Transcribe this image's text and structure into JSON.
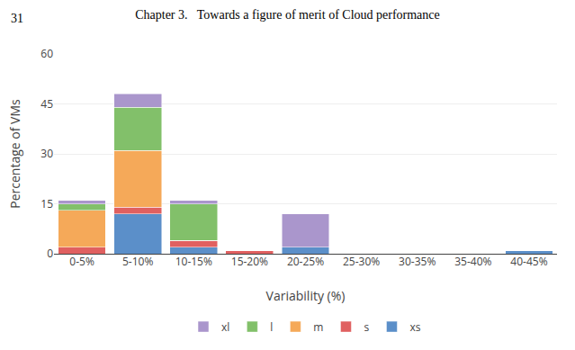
{
  "chart_data": {
    "type": "bar",
    "stacked": true,
    "title": "Chapter 3.   Towards a figure of merit of Cloud performance",
    "annotations": [
      "31"
    ],
    "xlabel": "Variability (%)",
    "ylabel": "Percentage of VMs",
    "categories": [
      "0-5%",
      "5-10%",
      "10-15%",
      "15-20%",
      "20-25%",
      "25-30%",
      "30-35%",
      "35-40%",
      "40-45%"
    ],
    "series": [
      {
        "name": "xs",
        "color": "#5b8fc9",
        "values": [
          0,
          12,
          2,
          0,
          2,
          0,
          0,
          0,
          1
        ]
      },
      {
        "name": "s",
        "color": "#e06060",
        "values": [
          2,
          2,
          2,
          1,
          0,
          0,
          0,
          0,
          0
        ]
      },
      {
        "name": "m",
        "color": "#f5a959",
        "values": [
          11,
          17,
          0,
          0,
          0,
          0,
          0,
          0,
          0
        ]
      },
      {
        "name": "l",
        "color": "#82c06a",
        "values": [
          2,
          13,
          11,
          0,
          0,
          0,
          0,
          0,
          0
        ]
      },
      {
        "name": "xl",
        "color": "#aa96cc",
        "values": [
          1,
          4,
          1,
          0,
          10,
          0,
          0,
          0,
          0
        ]
      }
    ],
    "ylim": [
      0,
      60
    ],
    "yticks": [
      0,
      15,
      30,
      45,
      60
    ],
    "grid": true,
    "legend": "bottom"
  }
}
